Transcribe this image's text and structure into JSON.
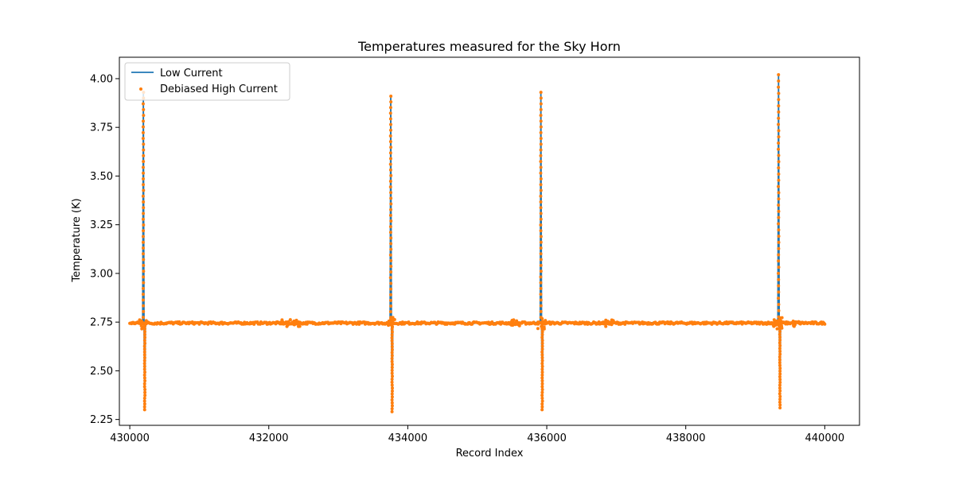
{
  "chart_data": {
    "type": "line",
    "title": "Temperatures measured for the Sky Horn",
    "xlabel": "Record Index",
    "ylabel": "Temperature (K)",
    "xlim": [
      429850,
      440500
    ],
    "ylim": [
      2.22,
      4.11
    ],
    "xticks": [
      430000,
      432000,
      434000,
      436000,
      438000,
      440000
    ],
    "yticks": [
      2.25,
      2.5,
      2.75,
      3.0,
      3.25,
      3.5,
      3.75,
      4.0
    ],
    "ytick_labels": [
      "2.25",
      "2.50",
      "2.75",
      "3.00",
      "3.25",
      "3.50",
      "3.75",
      "4.00"
    ],
    "grid": false,
    "legend_position": "top-left",
    "baseline": 2.745,
    "x_range": [
      430000,
      440000
    ],
    "spikes": [
      {
        "x": 430200,
        "max": 3.93,
        "min": 2.3
      },
      {
        "x": 433760,
        "max": 3.91,
        "min": 2.29
      },
      {
        "x": 435920,
        "max": 3.93,
        "min": 2.3
      },
      {
        "x": 439340,
        "max": 4.02,
        "min": 2.31
      }
    ],
    "series": [
      {
        "name": "Low Current",
        "style": "line",
        "color": "#1f77b4"
      },
      {
        "name": "Debiased High Current",
        "style": "scatter",
        "color": "#ff7f0e"
      }
    ]
  }
}
